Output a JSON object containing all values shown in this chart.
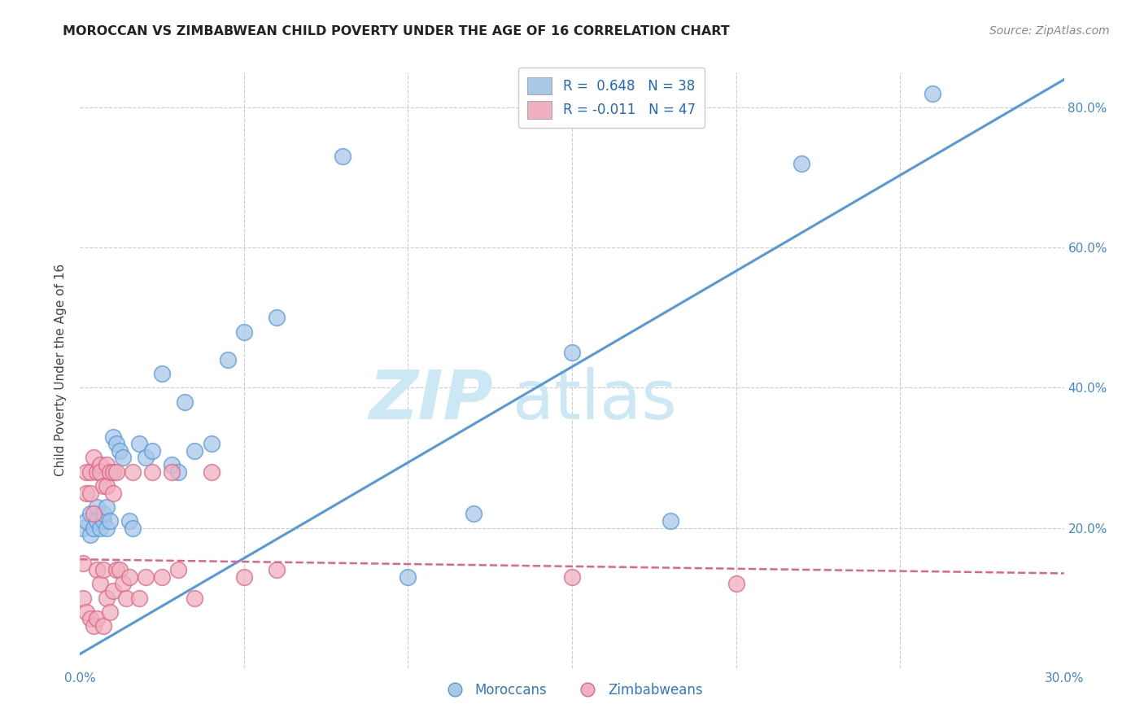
{
  "title": "MOROCCAN VS ZIMBABWEAN CHILD POVERTY UNDER THE AGE OF 16 CORRELATION CHART",
  "source": "Source: ZipAtlas.com",
  "ylabel": "Child Poverty Under the Age of 16",
  "xlim": [
    0.0,
    0.3
  ],
  "ylim": [
    0.0,
    0.85
  ],
  "moroccan_R": 0.648,
  "moroccan_N": 38,
  "zimbabwean_R": -0.011,
  "zimbabwean_N": 47,
  "moroccan_color": "#a8c8e8",
  "moroccan_line_color": "#5599dd",
  "zimbabwean_color": "#f0b0c0",
  "zimbabwean_line_color": "#dd6688",
  "background_color": "#ffffff",
  "grid_color": "#cccccc",
  "watermark_color": "#cde8f5",
  "moroccan_x": [
    0.001,
    0.002,
    0.003,
    0.003,
    0.004,
    0.005,
    0.005,
    0.006,
    0.007,
    0.007,
    0.008,
    0.008,
    0.009,
    0.01,
    0.011,
    0.012,
    0.013,
    0.015,
    0.016,
    0.018,
    0.02,
    0.022,
    0.025,
    0.028,
    0.03,
    0.032,
    0.035,
    0.04,
    0.045,
    0.05,
    0.06,
    0.08,
    0.1,
    0.12,
    0.15,
    0.18,
    0.22,
    0.26
  ],
  "moroccan_y": [
    0.2,
    0.21,
    0.19,
    0.22,
    0.2,
    0.23,
    0.21,
    0.2,
    0.21,
    0.22,
    0.2,
    0.23,
    0.21,
    0.33,
    0.32,
    0.31,
    0.3,
    0.21,
    0.2,
    0.32,
    0.3,
    0.31,
    0.42,
    0.29,
    0.28,
    0.38,
    0.31,
    0.32,
    0.44,
    0.48,
    0.5,
    0.73,
    0.13,
    0.22,
    0.45,
    0.21,
    0.72,
    0.82
  ],
  "zimbabwean_x": [
    0.001,
    0.001,
    0.002,
    0.002,
    0.002,
    0.003,
    0.003,
    0.003,
    0.004,
    0.004,
    0.004,
    0.005,
    0.005,
    0.005,
    0.006,
    0.006,
    0.006,
    0.007,
    0.007,
    0.007,
    0.008,
    0.008,
    0.008,
    0.009,
    0.009,
    0.01,
    0.01,
    0.01,
    0.011,
    0.011,
    0.012,
    0.013,
    0.014,
    0.015,
    0.016,
    0.018,
    0.02,
    0.022,
    0.025,
    0.028,
    0.03,
    0.035,
    0.04,
    0.05,
    0.06,
    0.15,
    0.2
  ],
  "zimbabwean_y": [
    0.15,
    0.1,
    0.28,
    0.25,
    0.08,
    0.28,
    0.25,
    0.07,
    0.3,
    0.22,
    0.06,
    0.28,
    0.14,
    0.07,
    0.29,
    0.28,
    0.12,
    0.26,
    0.14,
    0.06,
    0.29,
    0.26,
    0.1,
    0.28,
    0.08,
    0.28,
    0.25,
    0.11,
    0.28,
    0.14,
    0.14,
    0.12,
    0.1,
    0.13,
    0.28,
    0.1,
    0.13,
    0.28,
    0.13,
    0.28,
    0.14,
    0.1,
    0.28,
    0.13,
    0.14,
    0.13,
    0.12
  ]
}
